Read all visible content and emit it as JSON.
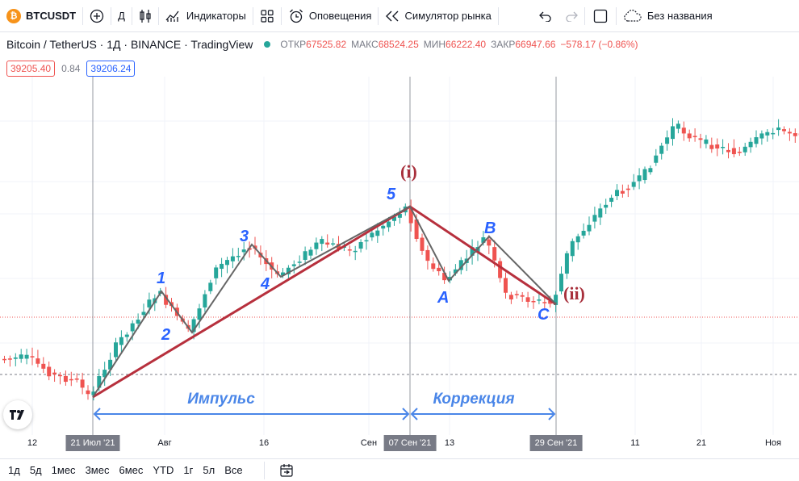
{
  "toolbar": {
    "symbol": "BTCUSDT",
    "symbol_logo": "₿",
    "interval": "Д",
    "indicators_label": "Индикаторы",
    "alerts_label": "Оповещения",
    "replay_label": "Симулятор рынка",
    "layout_name": "Без названия",
    "icons": [
      "plus-circle-icon",
      "candles-icon",
      "indicators-icon",
      "grid-icon",
      "alarm-clock-icon",
      "replay-icon",
      "undo-icon",
      "redo-icon",
      "fullscreen-icon",
      "cloud-icon"
    ]
  },
  "legend": {
    "title": "Bitcoin / TetherUS · 1Д · BINANCE · TradingView",
    "o_label": "ОТКР",
    "o_value": "67525.82",
    "h_label": "МАКС",
    "h_value": "68524.25",
    "l_label": "МИН",
    "l_value": "66222.40",
    "c_label": "ЗАКР",
    "c_value": "66947.66",
    "change": "−578.17 (−0.86%)"
  },
  "prices": {
    "sell": "39205.40",
    "spread": "0.84",
    "buy": "39206.24"
  },
  "annotations": {
    "wave1": "1",
    "wave2": "2",
    "wave3": "3",
    "wave4": "4",
    "wave5": "5",
    "waveA": "A",
    "waveB": "B",
    "waveC": "C",
    "top_label": "(i)",
    "bottom_label": "(ii)",
    "impulse": "Импульс",
    "correction": "Коррекция"
  },
  "time_axis": {
    "ticks": [
      "12",
      "21 Июл '21",
      "Авг",
      "16",
      "Сен",
      "07 Сен '21",
      "13",
      "29 Сен '21",
      "11",
      "21",
      "Ноя"
    ],
    "highlighted": [
      "21 Июл '21",
      "07 Сен '21",
      "29 Сен '21"
    ]
  },
  "bottom_bar": {
    "ranges": [
      "1д",
      "5д",
      "1мес",
      "3мес",
      "6мес",
      "YTD",
      "1г",
      "5л",
      "Все"
    ]
  },
  "colors": {
    "up": "#26a69a",
    "down": "#ef5350",
    "wave_line": "#666666",
    "trend_line": "#b7303d",
    "blue_label": "#2962ff",
    "red_label": "#a8303c"
  }
}
